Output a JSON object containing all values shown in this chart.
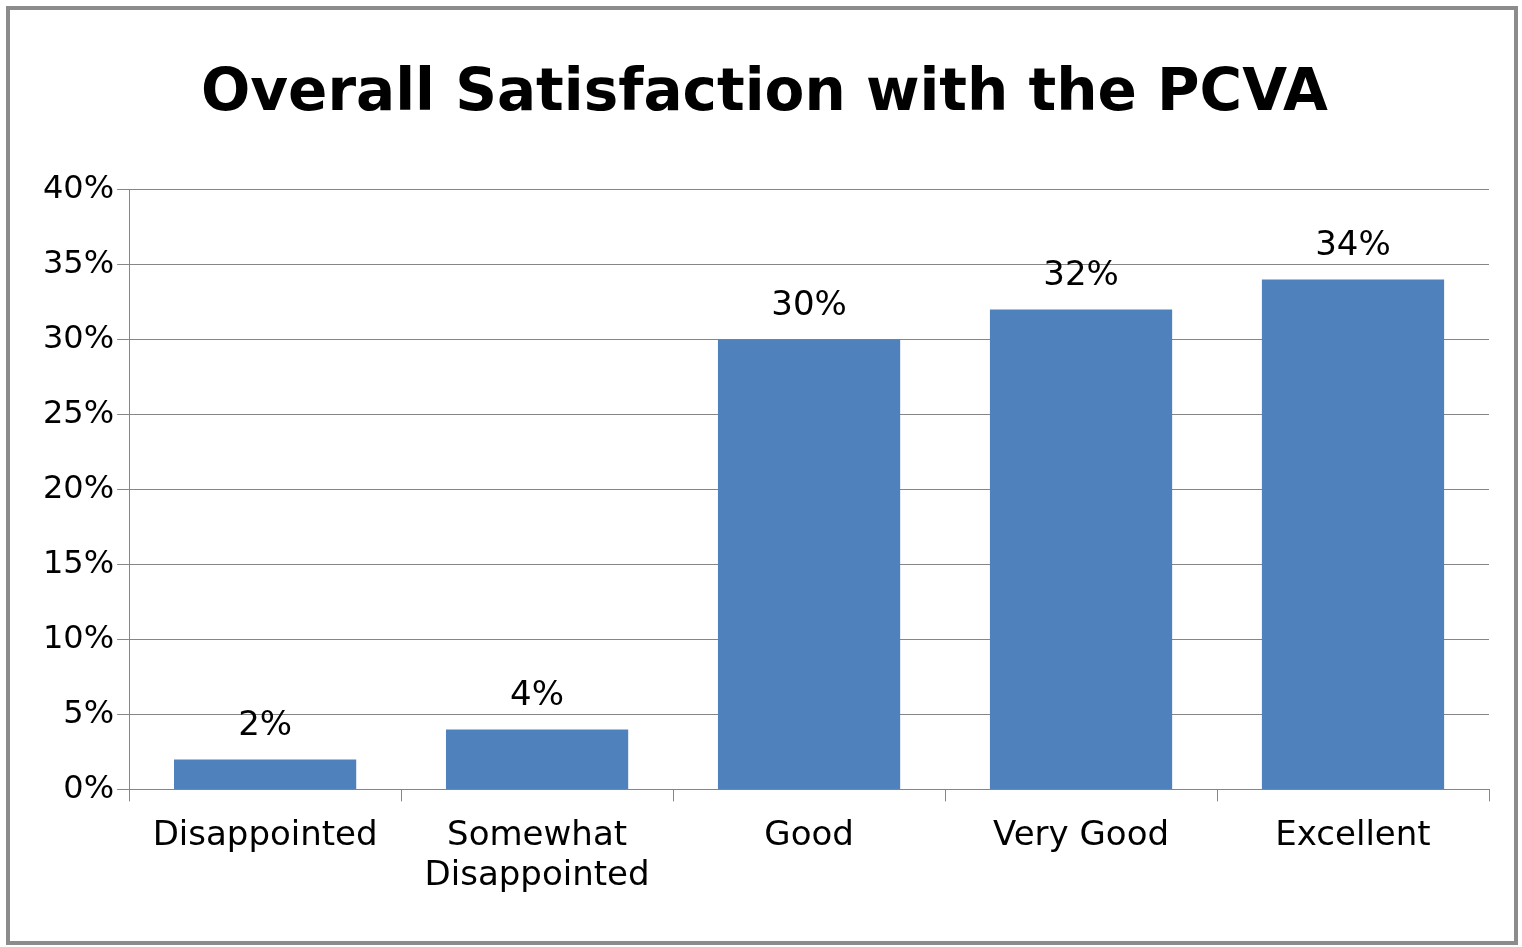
{
  "chart_data": {
    "type": "bar",
    "title": "Overall Satisfaction with the PCVA",
    "categories": [
      "Disappointed",
      "Somewhat Disappointed",
      "Good",
      "Very Good",
      "Excellent"
    ],
    "values": [
      2,
      4,
      30,
      32,
      34
    ],
    "color": "#4f81bd",
    "value_labels": [
      "2%",
      "4%",
      "30%",
      "32%",
      "34%"
    ],
    "ylim": [
      0,
      40
    ],
    "yticks": [
      {
        "value": 0,
        "label": "0%"
      },
      {
        "value": 5,
        "label": "5%"
      },
      {
        "value": 10,
        "label": "10%"
      },
      {
        "value": 15,
        "label": "15%"
      },
      {
        "value": 20,
        "label": "20%"
      },
      {
        "value": 25,
        "label": "25%"
      },
      {
        "value": 30,
        "label": "30%"
      },
      {
        "value": 35,
        "label": "35%"
      },
      {
        "value": 40,
        "label": "40%"
      }
    ],
    "grid": "y",
    "legend": false
  }
}
